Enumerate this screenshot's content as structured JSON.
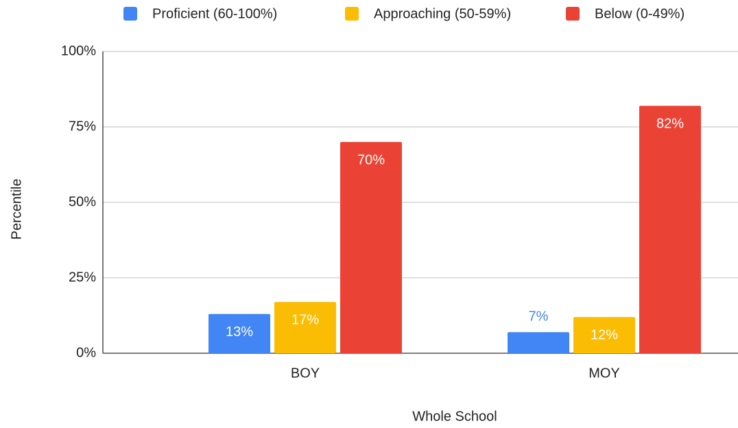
{
  "chart_data": {
    "type": "bar",
    "x_label": "Whole School",
    "y_label": "Percentile",
    "categories": [
      "BOY",
      "MOY"
    ],
    "series": [
      {
        "name": "Proficient (60-100%)",
        "color": "#4285f4",
        "values": [
          13,
          7
        ],
        "value_labels": [
          "13%",
          "7%"
        ]
      },
      {
        "name": "Approaching (50-59%)",
        "color": "#fbbc04",
        "values": [
          17,
          12
        ],
        "value_labels": [
          "17%",
          "12%"
        ]
      },
      {
        "name": "Below (0-49%)",
        "color": "#ea4335",
        "values": [
          70,
          82
        ],
        "value_labels": [
          "70%",
          "82%"
        ]
      }
    ],
    "ylim": [
      0,
      100
    ],
    "yticks": [
      {
        "value": 0,
        "label": "0%"
      },
      {
        "value": 25,
        "label": "25%"
      },
      {
        "value": 50,
        "label": "50%"
      },
      {
        "value": 75,
        "label": "75%"
      },
      {
        "value": 100,
        "label": "100%"
      }
    ],
    "grid": true,
    "legend": "top"
  }
}
